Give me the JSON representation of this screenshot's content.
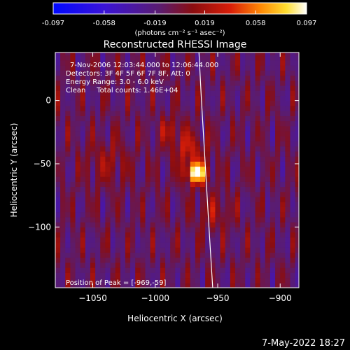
{
  "colorbar": {
    "ticks": [
      "-0.097",
      "-0.058",
      "-0.019",
      "0.019",
      "0.058",
      "0.097"
    ],
    "tick_values": [
      -0.097,
      -0.058,
      -0.019,
      0.019,
      0.058,
      0.097
    ],
    "range": [
      -0.097,
      0.097
    ],
    "unit_label": "(photons cm⁻² s⁻¹ asec⁻²)"
  },
  "chart_data": {
    "type": "heatmap",
    "title": "Reconstructed RHESSI Image",
    "xlabel": "Heliocentric X (arcsec)",
    "ylabel": "Heliocentric Y (arcsec)",
    "xlim": [
      -1080,
      -885
    ],
    "ylim": [
      -148,
      38
    ],
    "x_ticks": [
      -1050,
      -1000,
      -950,
      -900
    ],
    "x_tick_labels": [
      "−1050",
      "−1000",
      "−950",
      "−900"
    ],
    "y_ticks": [
      0,
      -50,
      -100
    ],
    "y_tick_labels": [
      "0",
      "−50",
      "−100"
    ],
    "grid": false,
    "colormap": "rhessi-blue-purple-red-yellow-white",
    "peak": {
      "x": -969,
      "y": -59
    },
    "limb": [
      [
        -965,
        38
      ],
      [
        -963,
        0
      ],
      [
        -960,
        -50
      ],
      [
        -957,
        -100
      ],
      [
        -954,
        -148
      ]
    ],
    "sources": [
      {
        "x": -969,
        "y": -59,
        "sigma": 6,
        "amp": 1.0
      },
      {
        "x": -975,
        "y": -40,
        "sigma": 9,
        "amp": 0.35
      },
      {
        "x": -990,
        "y": -25,
        "sigma": 7,
        "amp": 0.25
      },
      {
        "x": -1040,
        "y": -50,
        "sigma": 12,
        "amp": 0.2
      },
      {
        "x": -955,
        "y": -90,
        "sigma": 10,
        "amp": 0.22
      }
    ],
    "annotations": [
      "7-Nov-2006 12:03:44.000 to 12:06:44.000",
      "Detectors: 3F 4F 5F 6F 7F 8F, Att: 0",
      "Energy Range: 3.0 - 6.0 keV",
      "Clean     Total counts: 1.46E+04",
      "Position of Peak = [-969,-59]"
    ]
  },
  "footer": {
    "timestamp": "7-May-2022 18:27"
  }
}
